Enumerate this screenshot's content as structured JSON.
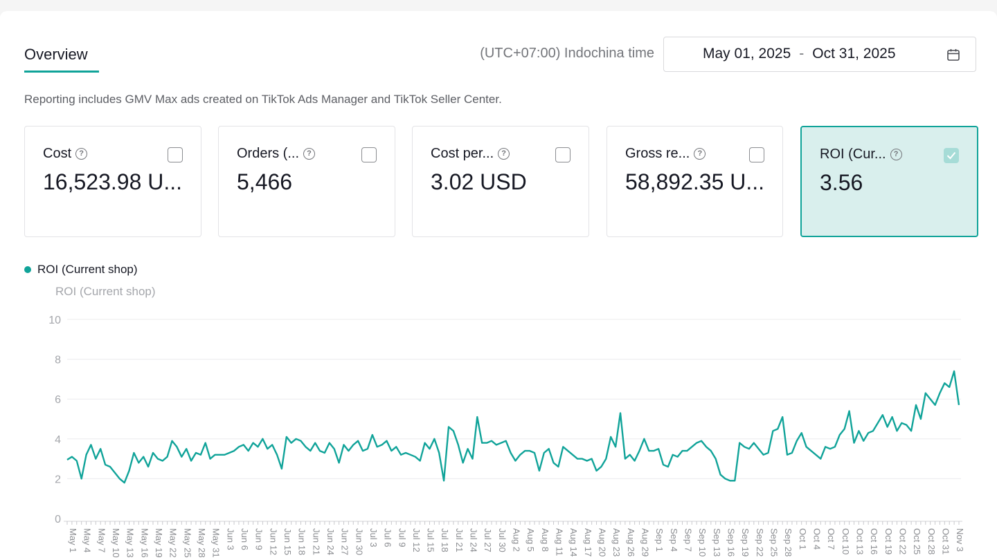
{
  "header": {
    "tab_label": "Overview",
    "timezone": "(UTC+07:00) Indochina time",
    "date_start": "May 01, 2025",
    "date_sep": "-",
    "date_end": "Oct 31, 2025"
  },
  "note": "Reporting includes GMV Max ads created on TikTok Ads Manager and TikTok Seller Center.",
  "cards": [
    {
      "label": "Cost",
      "value": "16,523.98 U...",
      "checked": false
    },
    {
      "label": "Orders (...",
      "value": "5,466",
      "checked": false
    },
    {
      "label": "Cost per...",
      "value": "3.02 USD",
      "checked": false
    },
    {
      "label": "Gross re...",
      "value": "58,892.35 U...",
      "checked": false
    },
    {
      "label": "ROI (Cur...",
      "value": "3.56",
      "checked": true
    }
  ],
  "legend_label": "ROI (Current shop)",
  "colors": {
    "accent": "#10a399",
    "active_card_bg": "#d9efed"
  },
  "chart_data": {
    "type": "line",
    "ylabel": "ROI (Current shop)",
    "ylim": [
      0,
      10
    ],
    "yticks": [
      0,
      2,
      4,
      6,
      8,
      10
    ],
    "grid": true,
    "legend": "top-left",
    "x_start": "2025-05-01",
    "x_end": "2025-10-31",
    "series": [
      {
        "name": "ROI (Current shop)",
        "values": [
          2.95,
          3.1,
          2.9,
          2.0,
          3.2,
          3.7,
          3.0,
          3.5,
          2.7,
          2.6,
          2.3,
          2.0,
          1.8,
          2.4,
          3.3,
          2.8,
          3.1,
          2.6,
          3.3,
          3.0,
          2.9,
          3.1,
          3.9,
          3.6,
          3.1,
          3.5,
          2.9,
          3.3,
          3.2,
          3.8,
          3.0,
          3.2,
          3.2,
          3.2,
          3.3,
          3.4,
          3.6,
          3.7,
          3.4,
          3.8,
          3.6,
          4.0,
          3.5,
          3.7,
          3.2,
          2.5,
          4.1,
          3.8,
          4.0,
          3.9,
          3.6,
          3.4,
          3.8,
          3.4,
          3.3,
          3.8,
          3.5,
          2.8,
          3.7,
          3.4,
          3.7,
          3.9,
          3.4,
          3.5,
          4.2,
          3.6,
          3.7,
          3.9,
          3.4,
          3.6,
          3.2,
          3.3,
          3.2,
          3.1,
          2.9,
          3.8,
          3.5,
          4.0,
          3.3,
          1.9,
          4.6,
          4.4,
          3.7,
          2.8,
          3.5,
          3.0,
          5.1,
          3.8,
          3.8,
          3.9,
          3.7,
          3.8,
          3.9,
          3.3,
          2.9,
          3.2,
          3.4,
          3.4,
          3.3,
          2.4,
          3.3,
          3.5,
          2.8,
          2.6,
          3.6,
          3.4,
          3.2,
          3.0,
          3.0,
          2.9,
          3.0,
          2.4,
          2.6,
          3.0,
          4.1,
          3.6,
          5.3,
          3.0,
          3.2,
          2.9,
          3.4,
          4.0,
          3.4,
          3.4,
          3.5,
          2.7,
          2.6,
          3.2,
          3.1,
          3.4,
          3.4,
          3.6,
          3.8,
          3.9,
          3.6,
          3.4,
          3.0,
          2.2,
          2.0,
          1.9,
          1.9,
          3.8,
          3.6,
          3.5,
          3.8,
          3.5,
          3.2,
          3.3,
          4.4,
          4.5,
          5.1,
          3.2,
          3.3,
          3.9,
          4.3,
          3.6,
          3.4,
          3.2,
          3.0,
          3.6,
          3.5,
          3.6,
          4.2,
          4.5,
          5.4,
          3.8,
          4.4,
          3.9,
          4.3,
          4.4,
          4.8,
          5.2,
          4.6,
          5.1,
          4.4,
          4.8,
          4.7,
          4.4,
          5.7,
          5.0,
          6.3,
          6.0,
          5.7,
          6.3,
          6.8,
          6.6,
          7.4,
          5.7
        ]
      }
    ]
  }
}
